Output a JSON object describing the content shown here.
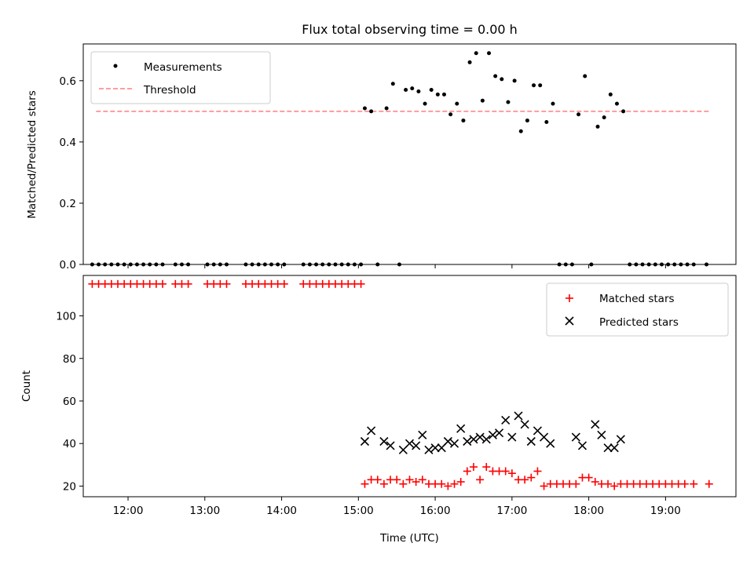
{
  "chart_data": [
    {
      "type": "scatter",
      "title": "Flux total observing time = 0.00 h",
      "xlabel": "",
      "ylabel": "Matched/Predicted stars",
      "xlim": [
        "11:25",
        "19:55"
      ],
      "ylim": [
        0,
        0.72
      ],
      "xticks": [
        "12:00",
        "13:00",
        "14:00",
        "15:00",
        "16:00",
        "17:00",
        "18:00",
        "19:00"
      ],
      "yticks": [
        "0.0",
        "0.2",
        "0.4",
        "0.6"
      ],
      "legend": {
        "position": "top-left",
        "entries": [
          "Measurements",
          "Threshold"
        ]
      },
      "threshold": {
        "name": "Threshold",
        "value": 0.5,
        "x": [
          "11:35",
          "19:35"
        ],
        "color": "#ff7f7f",
        "style": "dashed"
      },
      "series": [
        {
          "name": "Measurements",
          "color": "#000000",
          "marker": "dot",
          "points": [
            [
              "11:32",
              0
            ],
            [
              "11:37",
              0
            ],
            [
              "11:42",
              0
            ],
            [
              "11:47",
              0
            ],
            [
              "11:52",
              0
            ],
            [
              "11:57",
              0
            ],
            [
              "12:02",
              0
            ],
            [
              "12:07",
              0
            ],
            [
              "12:12",
              0
            ],
            [
              "12:17",
              0
            ],
            [
              "12:22",
              0
            ],
            [
              "12:27",
              0
            ],
            [
              "12:37",
              0
            ],
            [
              "12:42",
              0
            ],
            [
              "12:47",
              0
            ],
            [
              "13:02",
              0
            ],
            [
              "13:07",
              0
            ],
            [
              "13:12",
              0
            ],
            [
              "13:17",
              0
            ],
            [
              "13:32",
              0
            ],
            [
              "13:37",
              0
            ],
            [
              "13:42",
              0
            ],
            [
              "13:47",
              0
            ],
            [
              "13:52",
              0
            ],
            [
              "13:57",
              0
            ],
            [
              "14:02",
              0
            ],
            [
              "14:17",
              0
            ],
            [
              "14:22",
              0
            ],
            [
              "14:27",
              0
            ],
            [
              "14:32",
              0
            ],
            [
              "14:37",
              0
            ],
            [
              "14:42",
              0
            ],
            [
              "14:47",
              0
            ],
            [
              "14:52",
              0
            ],
            [
              "14:57",
              0
            ],
            [
              "15:02",
              0
            ],
            [
              "15:05",
              0.51
            ],
            [
              "15:10",
              0.5
            ],
            [
              "15:15",
              0
            ],
            [
              "15:22",
              0.51
            ],
            [
              "15:27",
              0.59
            ],
            [
              "15:32",
              0
            ],
            [
              "15:37",
              0.57
            ],
            [
              "15:42",
              0.575
            ],
            [
              "15:47",
              0.565
            ],
            [
              "15:52",
              0.525
            ],
            [
              "15:57",
              0.57
            ],
            [
              "16:02",
              0.555
            ],
            [
              "16:07",
              0.555
            ],
            [
              "16:12",
              0.49
            ],
            [
              "16:17",
              0.525
            ],
            [
              "16:22",
              0.47
            ],
            [
              "16:27",
              0.66
            ],
            [
              "16:32",
              0.69
            ],
            [
              "16:37",
              0.535
            ],
            [
              "16:42",
              0.69
            ],
            [
              "16:47",
              0.615
            ],
            [
              "16:52",
              0.605
            ],
            [
              "16:57",
              0.53
            ],
            [
              "17:02",
              0.6
            ],
            [
              "17:07",
              0.435
            ],
            [
              "17:12",
              0.47
            ],
            [
              "17:17",
              0.585
            ],
            [
              "17:22",
              0.585
            ],
            [
              "17:27",
              0.465
            ],
            [
              "17:32",
              0.525
            ],
            [
              "17:37",
              0
            ],
            [
              "17:42",
              0
            ],
            [
              "17:47",
              0
            ],
            [
              "17:52",
              0.49
            ],
            [
              "17:57",
              0.615
            ],
            [
              "18:02",
              0
            ],
            [
              "18:07",
              0.45
            ],
            [
              "18:12",
              0.48
            ],
            [
              "18:17",
              0.555
            ],
            [
              "18:22",
              0.525
            ],
            [
              "18:27",
              0.5
            ],
            [
              "18:32",
              0
            ],
            [
              "18:37",
              0
            ],
            [
              "18:42",
              0
            ],
            [
              "18:47",
              0
            ],
            [
              "18:52",
              0
            ],
            [
              "18:57",
              0
            ],
            [
              "19:02",
              0
            ],
            [
              "19:07",
              0
            ],
            [
              "19:12",
              0
            ],
            [
              "19:17",
              0
            ],
            [
              "19:22",
              0
            ],
            [
              "19:32",
              0
            ]
          ]
        }
      ]
    },
    {
      "type": "scatter",
      "title": "",
      "xlabel": "Time (UTC)",
      "ylabel": "Count",
      "xlim": [
        "11:25",
        "19:55"
      ],
      "ylim": [
        15,
        119
      ],
      "xticks": [
        "12:00",
        "13:00",
        "14:00",
        "15:00",
        "16:00",
        "17:00",
        "18:00",
        "19:00"
      ],
      "yticks": [
        "20",
        "40",
        "60",
        "80",
        "100"
      ],
      "legend": {
        "position": "top-right",
        "entries": [
          "Matched stars",
          "Predicted stars"
        ]
      },
      "series": [
        {
          "name": "Matched stars",
          "color": "#ff0000",
          "marker": "plus",
          "points": [
            [
              "11:32",
              115
            ],
            [
              "11:37",
              115
            ],
            [
              "11:42",
              115
            ],
            [
              "11:47",
              115
            ],
            [
              "11:52",
              115
            ],
            [
              "11:57",
              115
            ],
            [
              "12:02",
              115
            ],
            [
              "12:07",
              115
            ],
            [
              "12:12",
              115
            ],
            [
              "12:17",
              115
            ],
            [
              "12:22",
              115
            ],
            [
              "12:27",
              115
            ],
            [
              "12:37",
              115
            ],
            [
              "12:42",
              115
            ],
            [
              "12:47",
              115
            ],
            [
              "13:02",
              115
            ],
            [
              "13:07",
              115
            ],
            [
              "13:12",
              115
            ],
            [
              "13:17",
              115
            ],
            [
              "13:32",
              115
            ],
            [
              "13:37",
              115
            ],
            [
              "13:42",
              115
            ],
            [
              "13:47",
              115
            ],
            [
              "13:52",
              115
            ],
            [
              "13:57",
              115
            ],
            [
              "14:02",
              115
            ],
            [
              "14:17",
              115
            ],
            [
              "14:22",
              115
            ],
            [
              "14:27",
              115
            ],
            [
              "14:32",
              115
            ],
            [
              "14:37",
              115
            ],
            [
              "14:42",
              115
            ],
            [
              "14:47",
              115
            ],
            [
              "14:52",
              115
            ],
            [
              "14:57",
              115
            ],
            [
              "15:02",
              115
            ],
            [
              "15:05",
              21
            ],
            [
              "15:10",
              23
            ],
            [
              "15:15",
              23
            ],
            [
              "15:20",
              21
            ],
            [
              "15:25",
              23
            ],
            [
              "15:30",
              23
            ],
            [
              "15:35",
              21
            ],
            [
              "15:40",
              23
            ],
            [
              "15:45",
              22
            ],
            [
              "15:50",
              23
            ],
            [
              "15:55",
              21
            ],
            [
              "16:00",
              21
            ],
            [
              "16:05",
              21
            ],
            [
              "16:10",
              20
            ],
            [
              "16:15",
              21
            ],
            [
              "16:20",
              22
            ],
            [
              "16:25",
              27
            ],
            [
              "16:30",
              29
            ],
            [
              "16:35",
              23
            ],
            [
              "16:40",
              29
            ],
            [
              "16:45",
              27
            ],
            [
              "16:50",
              27
            ],
            [
              "16:55",
              27
            ],
            [
              "17:00",
              26
            ],
            [
              "17:05",
              23
            ],
            [
              "17:10",
              23
            ],
            [
              "17:15",
              24
            ],
            [
              "17:20",
              27
            ],
            [
              "17:25",
              20
            ],
            [
              "17:30",
              21
            ],
            [
              "17:35",
              21
            ],
            [
              "17:40",
              21
            ],
            [
              "17:45",
              21
            ],
            [
              "17:50",
              21
            ],
            [
              "17:55",
              24
            ],
            [
              "18:00",
              24
            ],
            [
              "18:05",
              22
            ],
            [
              "18:10",
              21
            ],
            [
              "18:15",
              21
            ],
            [
              "18:20",
              20
            ],
            [
              "18:25",
              21
            ],
            [
              "18:30",
              21
            ],
            [
              "18:35",
              21
            ],
            [
              "18:40",
              21
            ],
            [
              "18:45",
              21
            ],
            [
              "18:50",
              21
            ],
            [
              "18:55",
              21
            ],
            [
              "19:00",
              21
            ],
            [
              "19:05",
              21
            ],
            [
              "19:10",
              21
            ],
            [
              "19:15",
              21
            ],
            [
              "19:22",
              21
            ],
            [
              "19:34",
              21
            ]
          ]
        },
        {
          "name": "Predicted stars",
          "color": "#000000",
          "marker": "x",
          "points": [
            [
              "15:05",
              41
            ],
            [
              "15:10",
              46
            ],
            [
              "15:20",
              41
            ],
            [
              "15:25",
              39
            ],
            [
              "15:35",
              37
            ],
            [
              "15:40",
              40
            ],
            [
              "15:45",
              39
            ],
            [
              "15:50",
              44
            ],
            [
              "15:55",
              37
            ],
            [
              "16:00",
              38
            ],
            [
              "16:05",
              38
            ],
            [
              "16:10",
              41
            ],
            [
              "16:15",
              40
            ],
            [
              "16:20",
              47
            ],
            [
              "16:25",
              41
            ],
            [
              "16:30",
              42
            ],
            [
              "16:35",
              43
            ],
            [
              "16:40",
              42
            ],
            [
              "16:45",
              44
            ],
            [
              "16:50",
              45
            ],
            [
              "16:55",
              51
            ],
            [
              "17:00",
              43
            ],
            [
              "17:05",
              53
            ],
            [
              "17:10",
              49
            ],
            [
              "17:15",
              41
            ],
            [
              "17:20",
              46
            ],
            [
              "17:25",
              43
            ],
            [
              "17:30",
              40
            ],
            [
              "17:50",
              43
            ],
            [
              "17:55",
              39
            ],
            [
              "18:05",
              49
            ],
            [
              "18:10",
              44
            ],
            [
              "18:15",
              38
            ],
            [
              "18:20",
              38
            ],
            [
              "18:25",
              42
            ]
          ]
        }
      ]
    }
  ]
}
